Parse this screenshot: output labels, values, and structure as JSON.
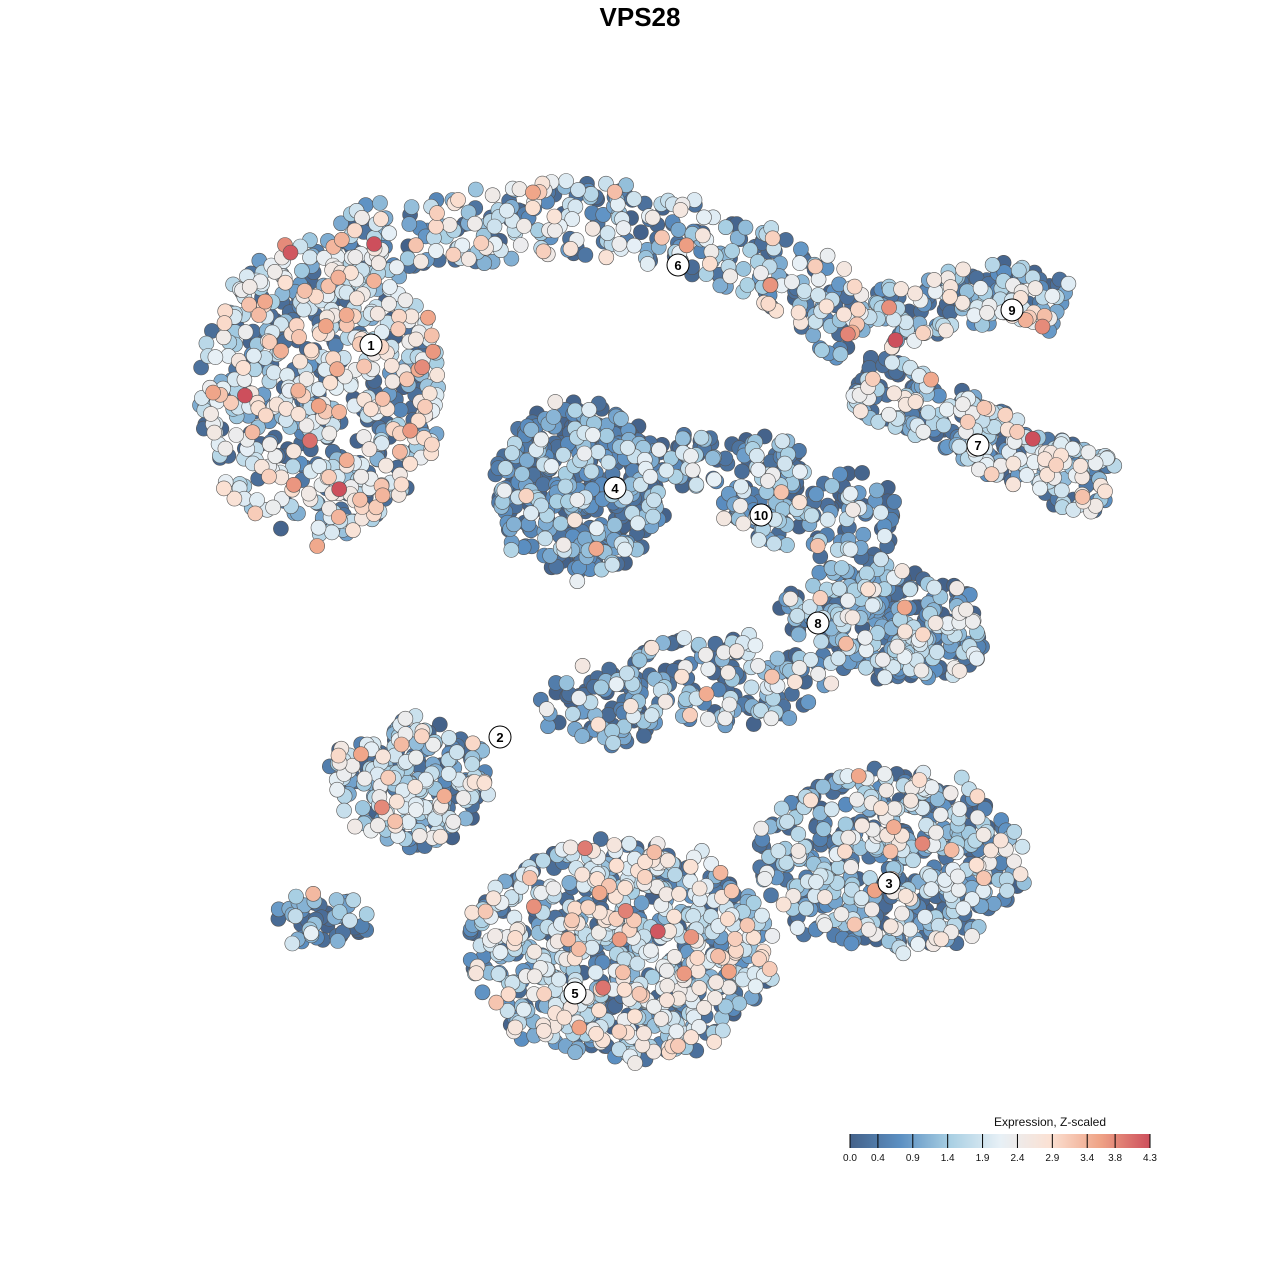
{
  "chart_data": {
    "type": "scatter",
    "title": "VPS28",
    "xlabel": "",
    "ylabel": "",
    "grid": false,
    "legend_position": "bottom-right",
    "legend": {
      "title": "Expression, Z-scaled",
      "ticks": [
        "0.0",
        "0.4",
        "0.9",
        "1.4",
        "1.9",
        "2.4",
        "2.9",
        "3.4",
        "3.8",
        "4.3"
      ],
      "range": [
        0.0,
        4.3
      ],
      "colors": [
        "#44628a",
        "#5b8fc2",
        "#a8cfe3",
        "#e7f0f6",
        "#fbe1d3",
        "#efa386",
        "#cd4f5c"
      ]
    },
    "cluster_labels": [
      "1",
      "2",
      "3",
      "4",
      "5",
      "6",
      "7",
      "8",
      "9",
      "10"
    ],
    "clusters": [
      {
        "label": "1",
        "shape": "blob",
        "mean_expression": 2.0
      },
      {
        "label": "2",
        "shape": "blob",
        "mean_expression": 1.5
      },
      {
        "label": "3",
        "shape": "blob",
        "mean_expression": 1.3
      },
      {
        "label": "4",
        "shape": "blob",
        "mean_expression": 0.7
      },
      {
        "label": "5",
        "shape": "blob",
        "mean_expression": 1.7
      },
      {
        "label": "6",
        "shape": "band",
        "mean_expression": 1.6
      },
      {
        "label": "7",
        "shape": "band",
        "mean_expression": 1.6
      },
      {
        "label": "8",
        "shape": "blob",
        "mean_expression": 1.0
      },
      {
        "label": "9",
        "shape": "band",
        "mean_expression": 1.6
      },
      {
        "label": "10",
        "shape": "blob",
        "mean_expression": 0.9
      }
    ]
  }
}
